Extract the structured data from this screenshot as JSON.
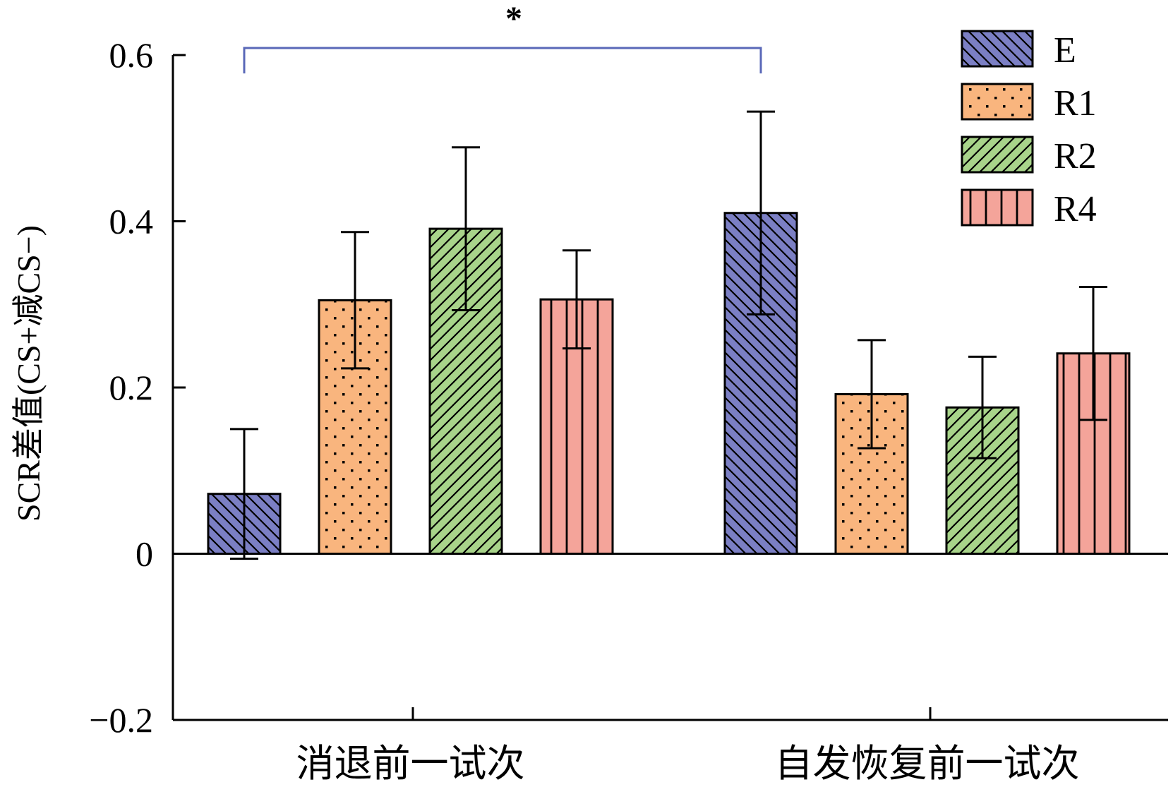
{
  "chart_data": {
    "type": "bar",
    "ylabel": "SCR差值(CS+减CS−)",
    "ylim": [
      -0.2,
      0.6
    ],
    "yticks": [
      {
        "value": 0.6,
        "label": "0.6"
      },
      {
        "value": 0.4,
        "label": "0.4"
      },
      {
        "value": 0.2,
        "label": "0.2"
      },
      {
        "value": 0,
        "label": "0"
      },
      {
        "value": -0.2,
        "label": "−0.2"
      }
    ],
    "categories": [
      "消退前一试次",
      "自发恢复前一试次"
    ],
    "grid": false,
    "legend_position": "top-right",
    "series": [
      {
        "name": "E",
        "values": [
          0.072,
          0.41
        ],
        "errors": [
          0.078,
          0.122
        ],
        "color": "#7b7fc4",
        "pattern": "backslash"
      },
      {
        "name": "R1",
        "values": [
          0.305,
          0.192
        ],
        "errors": [
          0.082,
          0.065
        ],
        "color": "#f9b57e",
        "pattern": "dots"
      },
      {
        "name": "R2",
        "values": [
          0.391,
          0.176
        ],
        "errors": [
          0.098,
          0.061
        ],
        "color": "#a8d48a",
        "pattern": "slash"
      },
      {
        "name": "R4",
        "values": [
          0.306,
          0.241
        ],
        "errors": [
          0.059,
          0.08
        ],
        "color": "#f4a49a",
        "pattern": "vertical"
      }
    ],
    "annotations": [
      {
        "text": "*",
        "between": [
          "消退前一试次:E",
          "自发恢复前一试次:E"
        ]
      }
    ],
    "bracket_color": "#5a68b8"
  }
}
